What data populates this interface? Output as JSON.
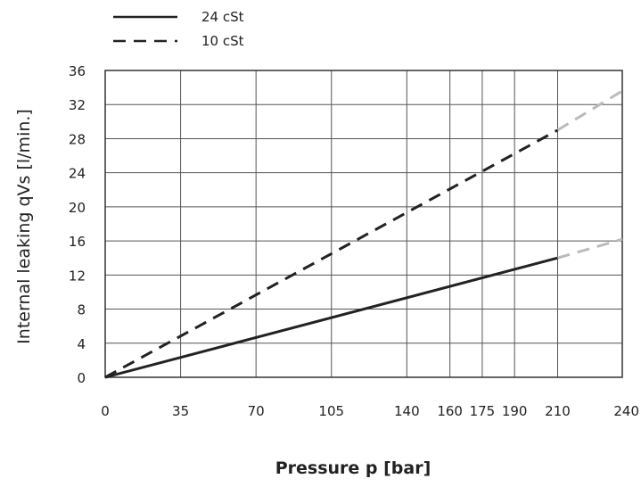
{
  "chart_data": {
    "type": "line",
    "title": "",
    "xlabel": "Pressure p [bar]",
    "ylabel": "Internal leaking qVs  [l/min.]",
    "xlim": [
      0,
      240
    ],
    "ylim": [
      0,
      36
    ],
    "x_ticks": [
      0,
      35,
      70,
      105,
      140,
      160,
      175,
      190,
      210,
      240
    ],
    "x_tick_labels": [
      "0",
      "35",
      "70",
      "105",
      "140",
      "160",
      "175",
      "190",
      "210",
      "240"
    ],
    "y_ticks": [
      0,
      4,
      8,
      12,
      16,
      20,
      24,
      28,
      32,
      36
    ],
    "y_tick_labels": [
      "0",
      "4",
      "8",
      "12",
      "16",
      "20",
      "24",
      "28",
      "32",
      "36"
    ],
    "grid": true,
    "legend": "top-left, above plot",
    "series": [
      {
        "name": "24 cSt",
        "style": "solid",
        "color": "#222222",
        "points": [
          [
            0,
            0
          ],
          [
            210,
            14
          ]
        ],
        "extrapolated": [
          [
            210,
            14
          ],
          [
            240,
            16.2
          ]
        ]
      },
      {
        "name": "10 cSt",
        "style": "dashed",
        "color": "#222222",
        "points": [
          [
            0,
            0
          ],
          [
            210,
            29
          ]
        ],
        "extrapolated": [
          [
            210,
            29
          ],
          [
            240,
            33.6
          ]
        ]
      }
    ],
    "extrapolation_color": "#bbbbbb"
  }
}
